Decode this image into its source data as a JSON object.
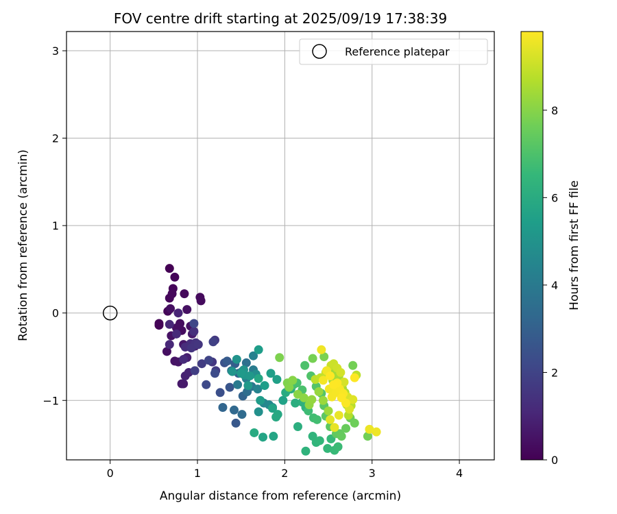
{
  "chart_data": {
    "type": "scatter",
    "title": "FOV centre drift starting at 2025/09/19 17:38:39",
    "xlabel": "Angular distance from reference (arcmin)",
    "ylabel": "Rotation from reference (arcmin)",
    "xlim": [
      -0.5,
      4.4
    ],
    "ylim": [
      -1.68,
      3.22
    ],
    "xticks": [
      0,
      1,
      2,
      3,
      4
    ],
    "yticks": [
      -1,
      0,
      1,
      2,
      3
    ],
    "ytick_labels": [
      "−1",
      "0",
      "1",
      "2",
      "3"
    ],
    "grid": true,
    "legend": {
      "label": "Reference platepar",
      "position": "top-right"
    },
    "reference_point": {
      "x": 0,
      "y": 0
    },
    "colorbar": {
      "label": "Hours from first FF file",
      "min": 0,
      "max": 9.8,
      "ticks": [
        0,
        2,
        4,
        6,
        8
      ],
      "colormap": [
        "#440154",
        "#482878",
        "#3e4989",
        "#31688e",
        "#26828e",
        "#1f9e89",
        "#35b779",
        "#6ece58",
        "#b5de2b",
        "#fde725"
      ]
    },
    "points": [
      [
        0.68,
        0.51,
        0.0
      ],
      [
        0.56,
        -0.14,
        0.05
      ],
      [
        0.56,
        -0.12,
        0.08
      ],
      [
        0.66,
        0.02,
        0.1
      ],
      [
        0.74,
        0.41,
        0.12
      ],
      [
        0.72,
        0.28,
        0.15
      ],
      [
        0.68,
        0.17,
        0.18
      ],
      [
        0.71,
        0.22,
        0.2
      ],
      [
        0.85,
        0.22,
        0.22
      ],
      [
        1.03,
        0.18,
        0.25
      ],
      [
        1.04,
        0.14,
        0.28
      ],
      [
        0.8,
        -0.12,
        0.3
      ],
      [
        0.82,
        -0.2,
        0.32
      ],
      [
        0.76,
        -0.17,
        0.35
      ],
      [
        0.69,
        0.05,
        0.38
      ],
      [
        0.65,
        -0.44,
        0.4
      ],
      [
        0.88,
        0.04,
        0.42
      ],
      [
        0.92,
        -0.15,
        0.45
      ],
      [
        0.7,
        -0.26,
        0.48
      ],
      [
        0.74,
        -0.55,
        0.5
      ],
      [
        0.78,
        -0.56,
        0.55
      ],
      [
        0.84,
        -0.36,
        0.6
      ],
      [
        0.82,
        -0.81,
        0.65
      ],
      [
        0.84,
        -0.81,
        0.7
      ],
      [
        0.94,
        -0.24,
        0.75
      ],
      [
        0.97,
        -0.38,
        0.8
      ],
      [
        0.88,
        -0.51,
        0.85
      ],
      [
        0.86,
        -0.72,
        0.9
      ],
      [
        0.9,
        -0.68,
        0.95
      ],
      [
        0.78,
        0.0,
        1.0
      ],
      [
        0.68,
        -0.13,
        1.05
      ],
      [
        0.68,
        -0.36,
        1.1
      ],
      [
        0.76,
        -0.24,
        1.15
      ],
      [
        0.84,
        -0.53,
        1.2
      ],
      [
        0.86,
        -0.39,
        1.25
      ],
      [
        0.92,
        -0.35,
        1.3
      ],
      [
        0.96,
        -0.21,
        1.35
      ],
      [
        0.98,
        -0.36,
        1.4
      ],
      [
        0.98,
        -0.34,
        1.45
      ],
      [
        0.93,
        -0.4,
        1.5
      ],
      [
        1.01,
        -0.36,
        1.55
      ],
      [
        1.17,
        -0.56,
        1.6
      ],
      [
        1.2,
        -0.31,
        1.65
      ],
      [
        1.21,
        -0.66,
        1.7
      ],
      [
        1.05,
        -0.58,
        1.75
      ],
      [
        0.97,
        -0.66,
        1.8
      ],
      [
        1.18,
        -0.33,
        1.9
      ],
      [
        1.13,
        -0.54,
        2.0
      ],
      [
        0.96,
        -0.12,
        2.1
      ],
      [
        1.1,
        -0.82,
        2.2
      ],
      [
        1.2,
        -0.69,
        2.3
      ],
      [
        1.26,
        -0.91,
        2.4
      ],
      [
        1.31,
        -0.57,
        2.5
      ],
      [
        1.37,
        -0.85,
        2.6
      ],
      [
        1.44,
        -1.26,
        2.7
      ],
      [
        1.34,
        -0.55,
        2.8
      ],
      [
        1.43,
        -0.58,
        2.9
      ],
      [
        1.47,
        -0.69,
        3.0
      ],
      [
        1.52,
        -0.95,
        3.1
      ],
      [
        1.29,
        -1.08,
        3.2
      ],
      [
        1.42,
        -1.11,
        3.3
      ],
      [
        1.51,
        -1.16,
        3.4
      ],
      [
        1.57,
        -0.9,
        3.5
      ],
      [
        1.56,
        -0.57,
        3.6
      ],
      [
        1.39,
        -0.66,
        3.7
      ],
      [
        1.51,
        -0.67,
        3.8
      ],
      [
        1.62,
        -0.84,
        3.9
      ],
      [
        1.46,
        -0.82,
        4.0
      ],
      [
        1.64,
        -0.65,
        4.1
      ],
      [
        1.56,
        -0.75,
        4.2
      ],
      [
        1.64,
        -0.49,
        4.3
      ],
      [
        1.69,
        -0.87,
        4.4
      ],
      [
        1.76,
        -1.03,
        4.5
      ],
      [
        1.82,
        -1.05,
        4.6
      ],
      [
        1.86,
        -1.08,
        4.7
      ],
      [
        1.67,
        -0.7,
        4.8
      ],
      [
        1.7,
        -1.13,
        4.9
      ],
      [
        1.45,
        -0.53,
        5.0
      ],
      [
        1.53,
        -0.65,
        5.05
      ],
      [
        1.4,
        -0.67,
        5.1
      ],
      [
        1.54,
        -0.71,
        5.15
      ],
      [
        1.6,
        -0.72,
        5.2
      ],
      [
        1.58,
        -0.83,
        5.25
      ],
      [
        1.5,
        -0.69,
        5.3
      ],
      [
        1.72,
        -1.0,
        5.35
      ],
      [
        1.7,
        -0.42,
        5.4
      ],
      [
        1.77,
        -0.83,
        5.45
      ],
      [
        1.84,
        -0.69,
        5.5
      ],
      [
        1.91,
        -0.76,
        5.55
      ],
      [
        1.98,
        -1.0,
        5.6
      ],
      [
        1.86,
        -1.09,
        5.65
      ],
      [
        1.75,
        -1.42,
        5.7
      ],
      [
        1.87,
        -1.41,
        5.75
      ],
      [
        1.7,
        -0.75,
        5.8
      ],
      [
        1.92,
        -1.16,
        5.85
      ],
      [
        1.9,
        -1.19,
        5.9
      ],
      [
        1.65,
        -1.37,
        5.95
      ],
      [
        2.01,
        -0.91,
        6.0
      ],
      [
        2.07,
        -0.87,
        6.05
      ],
      [
        2.12,
        -1.03,
        6.1
      ],
      [
        2.15,
        -1.3,
        6.15
      ],
      [
        2.2,
        -1.02,
        6.2
      ],
      [
        2.24,
        -1.08,
        6.25
      ],
      [
        2.24,
        -1.58,
        6.3
      ],
      [
        2.32,
        -1.41,
        6.35
      ],
      [
        2.36,
        -1.48,
        6.4
      ],
      [
        2.4,
        -1.46,
        6.45
      ],
      [
        2.49,
        -1.55,
        6.5
      ],
      [
        2.53,
        -1.44,
        6.55
      ],
      [
        2.57,
        -1.57,
        6.6
      ],
      [
        2.61,
        -1.53,
        6.65
      ],
      [
        2.27,
        -1.12,
        6.7
      ],
      [
        2.33,
        -1.2,
        6.75
      ],
      [
        2.37,
        -1.22,
        6.8
      ],
      [
        2.1,
        -0.82,
        6.85
      ],
      [
        2.14,
        -0.8,
        6.9
      ],
      [
        2.2,
        -0.88,
        6.95
      ],
      [
        2.23,
        -0.6,
        7.0
      ],
      [
        2.3,
        -0.72,
        7.05
      ],
      [
        2.36,
        -0.84,
        7.1
      ],
      [
        2.42,
        -0.92,
        7.15
      ],
      [
        2.45,
        -1.06,
        7.2
      ],
      [
        2.47,
        -1.18,
        7.25
      ],
      [
        2.52,
        -1.3,
        7.3
      ],
      [
        2.59,
        -1.38,
        7.35
      ],
      [
        2.63,
        -1.38,
        7.4
      ],
      [
        2.65,
        -1.41,
        7.45
      ],
      [
        2.7,
        -1.32,
        7.5
      ],
      [
        2.75,
        -1.2,
        7.55
      ],
      [
        2.8,
        -1.26,
        7.6
      ],
      [
        2.95,
        -1.41,
        7.65
      ],
      [
        2.78,
        -0.6,
        7.7
      ],
      [
        2.32,
        -0.52,
        7.75
      ],
      [
        2.45,
        -0.5,
        7.8
      ],
      [
        1.94,
        -0.51,
        7.85
      ],
      [
        2.03,
        -0.8,
        7.9
      ],
      [
        2.05,
        -0.85,
        7.95
      ],
      [
        2.09,
        -0.77,
        8.0
      ],
      [
        2.15,
        -0.93,
        8.05
      ],
      [
        2.22,
        -0.97,
        8.1
      ],
      [
        2.28,
        -1.05,
        8.15
      ],
      [
        2.31,
        -0.99,
        8.2
      ],
      [
        2.39,
        -0.9,
        8.25
      ],
      [
        2.44,
        -1.0,
        8.3
      ],
      [
        2.5,
        -1.12,
        8.35
      ],
      [
        2.55,
        -0.77,
        8.4
      ],
      [
        2.58,
        -0.66,
        8.45
      ],
      [
        2.62,
        -0.72,
        8.5
      ],
      [
        2.66,
        -0.86,
        8.55
      ],
      [
        2.69,
        -0.91,
        8.6
      ],
      [
        2.71,
        -1.05,
        8.65
      ],
      [
        2.73,
        -1.17,
        8.7
      ],
      [
        2.76,
        -1.06,
        8.75
      ],
      [
        2.82,
        -0.71,
        8.8
      ],
      [
        2.35,
        -0.76,
        8.85
      ],
      [
        2.41,
        -0.74,
        8.9
      ],
      [
        2.47,
        -0.68,
        8.95
      ],
      [
        2.53,
        -0.6,
        9.0
      ],
      [
        2.56,
        -0.58,
        9.05
      ],
      [
        2.6,
        -0.63,
        9.1
      ],
      [
        2.64,
        -0.68,
        9.15
      ],
      [
        2.68,
        -0.79,
        9.2
      ],
      [
        2.72,
        -0.96,
        9.25
      ],
      [
        2.74,
        -1.1,
        9.3
      ],
      [
        2.78,
        -0.99,
        9.35
      ],
      [
        2.52,
        -1.22,
        9.4
      ],
      [
        2.57,
        -1.31,
        9.45
      ],
      [
        2.62,
        -1.17,
        9.5
      ],
      [
        2.97,
        -1.33,
        9.55
      ],
      [
        3.05,
        -1.36,
        9.58
      ],
      [
        2.42,
        -0.42,
        9.6
      ],
      [
        2.48,
        -0.66,
        9.62
      ],
      [
        2.51,
        -0.87,
        9.64
      ],
      [
        2.44,
        -0.77,
        9.66
      ],
      [
        2.54,
        -0.96,
        9.68
      ],
      [
        2.59,
        -0.91,
        9.7
      ],
      [
        2.63,
        -0.87,
        9.72
      ],
      [
        2.67,
        -0.92,
        9.74
      ],
      [
        2.7,
        -1.03,
        9.76
      ],
      [
        2.6,
        -0.8,
        9.78
      ],
      [
        2.52,
        -0.72,
        9.8
      ],
      [
        2.56,
        -0.82,
        9.8
      ],
      [
        2.65,
        -0.97,
        9.8
      ],
      [
        2.8,
        -0.74,
        9.8
      ]
    ]
  }
}
